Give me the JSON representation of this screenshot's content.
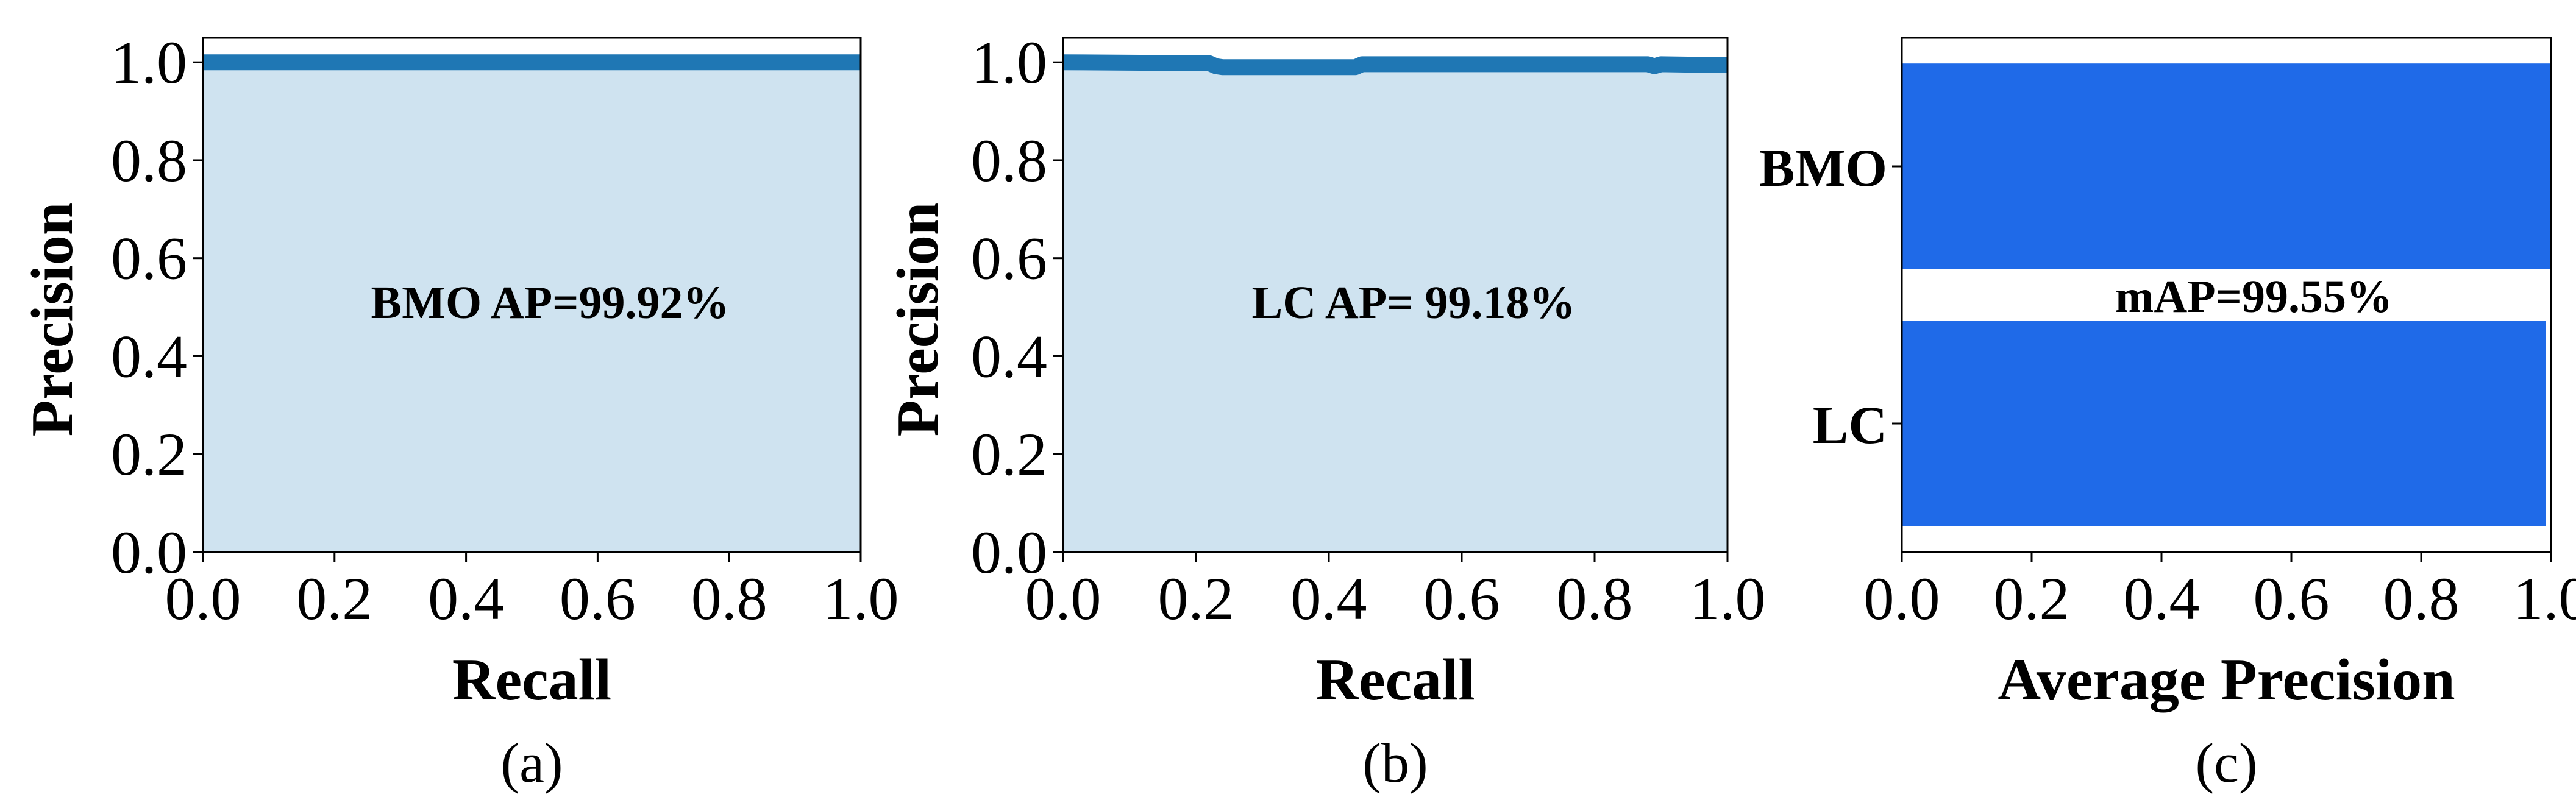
{
  "chart_data": [
    {
      "panel": "(a)",
      "type": "area",
      "xlabel": "Recall",
      "ylabel": "Precision",
      "xlim": [
        0.0,
        1.0
      ],
      "ylim": [
        0.0,
        1.05
      ],
      "xticks": [
        "0.0",
        "0.2",
        "0.4",
        "0.6",
        "0.8",
        "1.0"
      ],
      "yticks": [
        "0.0",
        "0.2",
        "0.4",
        "0.6",
        "0.8",
        "1.0"
      ],
      "annotation": "BMO AP=99.92%",
      "grid": false,
      "line_color": "#1f77b4",
      "fill_color": "#cfe3f0",
      "x": [
        0.0,
        0.2,
        0.4,
        0.6,
        0.8,
        1.0
      ],
      "y": [
        1.0,
        1.0,
        1.0,
        1.0,
        1.0,
        1.0
      ]
    },
    {
      "panel": "(b)",
      "type": "area",
      "xlabel": "Recall",
      "ylabel": "Precision",
      "xlim": [
        0.0,
        1.0
      ],
      "ylim": [
        0.0,
        1.05
      ],
      "xticks": [
        "0.0",
        "0.2",
        "0.4",
        "0.6",
        "0.8",
        "1.0"
      ],
      "yticks": [
        "0.0",
        "0.2",
        "0.4",
        "0.6",
        "0.8",
        "1.0"
      ],
      "annotation": "LC AP= 99.18%",
      "grid": false,
      "line_color": "#1f77b4",
      "fill_color": "#cfe3f0",
      "x": [
        0.0,
        0.22,
        0.23,
        0.24,
        0.44,
        0.45,
        0.88,
        0.89,
        0.9,
        1.0
      ],
      "y": [
        1.0,
        0.998,
        0.992,
        0.99,
        0.99,
        0.996,
        0.996,
        0.992,
        0.996,
        0.994
      ]
    },
    {
      "panel": "(c)",
      "type": "bar",
      "orientation": "horizontal",
      "xlabel": "Average Precision",
      "ylabel": "",
      "xlim": [
        0.0,
        1.0
      ],
      "xticks": [
        "0.0",
        "0.2",
        "0.4",
        "0.6",
        "0.8",
        "1.0"
      ],
      "categories": [
        "BMO",
        "LC"
      ],
      "values": [
        0.9992,
        0.9918
      ],
      "annotation": "mAP=99.55%",
      "grid": false,
      "bar_color": "#1f6ae8"
    }
  ]
}
